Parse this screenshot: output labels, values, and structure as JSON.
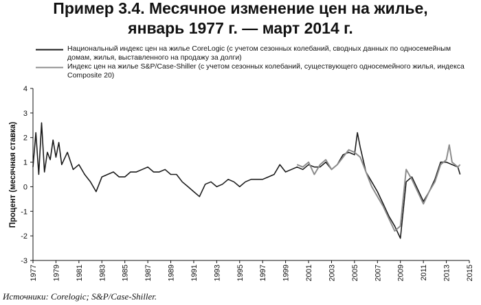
{
  "chart_data": {
    "type": "line",
    "title": [
      "Пример 3.4. Месячное изменение цен на жилье,",
      "январь 1977 г. — март 2014 г."
    ],
    "y_label": "Процент (месячная ставка)",
    "source": "Источники: Corelogic; S&P/Case-Shiller.",
    "xlim": [
      1977,
      2015
    ],
    "xticks": [
      1977,
      1979,
      1981,
      1983,
      1985,
      1987,
      1989,
      1991,
      1993,
      1995,
      1997,
      1999,
      2001,
      2003,
      2005,
      2007,
      2009,
      2011,
      2013,
      2015
    ],
    "ylim": [
      -3,
      4
    ],
    "yticks": [
      -3,
      -2,
      -1,
      0,
      1,
      2,
      3,
      4
    ],
    "series": [
      {
        "name": "Национальный индекс цен на жилье CoreLogic (с учетом сезонных колебаний, сводных данных по односемейным домам, жилья, выставленного на продажу за долги)",
        "color": "#1a1a1a",
        "x": [
          1977,
          1977.25,
          1977.5,
          1977.75,
          1978,
          1978.25,
          1978.5,
          1978.75,
          1979,
          1979.25,
          1979.5,
          1980,
          1980.5,
          1981,
          1981.5,
          1982,
          1982.5,
          1983,
          1983.5,
          1984,
          1984.5,
          1985,
          1985.5,
          1986,
          1986.5,
          1987,
          1987.5,
          1988,
          1988.5,
          1989,
          1989.5,
          1990,
          1990.5,
          1991,
          1991.5,
          1992,
          1992.5,
          1993,
          1993.5,
          1994,
          1994.5,
          1995,
          1995.5,
          1996,
          1996.5,
          1997,
          1997.5,
          1998,
          1998.5,
          1999,
          1999.5,
          2000,
          2000.5,
          2001,
          2001.5,
          2002,
          2002.5,
          2003,
          2003.5,
          2004,
          2004.5,
          2005,
          2005.25,
          2005.5,
          2006,
          2006.5,
          2007,
          2007.5,
          2008,
          2008.5,
          2009,
          2009.5,
          2010,
          2010.5,
          2011,
          2011.5,
          2012,
          2012.5,
          2013,
          2013.5,
          2014,
          2014.2
        ],
        "values": [
          0.8,
          2.2,
          0.5,
          2.6,
          0.6,
          1.4,
          1.1,
          1.9,
          1.2,
          1.8,
          0.9,
          1.4,
          0.7,
          0.9,
          0.5,
          0.2,
          -0.2,
          0.4,
          0.5,
          0.6,
          0.4,
          0.4,
          0.6,
          0.6,
          0.7,
          0.8,
          0.6,
          0.6,
          0.7,
          0.5,
          0.5,
          0.2,
          0.0,
          -0.2,
          -0.4,
          0.1,
          0.2,
          0.0,
          0.1,
          0.3,
          0.2,
          0.0,
          0.2,
          0.3,
          0.3,
          0.3,
          0.4,
          0.5,
          0.9,
          0.6,
          0.7,
          0.8,
          0.7,
          0.9,
          0.8,
          0.8,
          1.0,
          0.7,
          0.9,
          1.3,
          1.4,
          1.3,
          2.2,
          1.6,
          0.6,
          0.2,
          -0.2,
          -0.7,
          -1.2,
          -1.6,
          -2.1,
          0.2,
          0.4,
          -0.1,
          -0.6,
          -0.2,
          0.3,
          1.0,
          1.0,
          0.9,
          0.8,
          0.5
        ]
      },
      {
        "name": "Индекс цен на жилье S&P/Case-Shiller (с учетом сезонных колебаний, существующего односемейного жилья, индекса Composite 20)",
        "color": "#8c8c8c",
        "x": [
          2000,
          2000.5,
          2001,
          2001.5,
          2002,
          2002.5,
          2003,
          2003.5,
          2004,
          2004.5,
          2005,
          2005.5,
          2006,
          2006.5,
          2007,
          2007.5,
          2008,
          2008.5,
          2009,
          2009.5,
          2010,
          2010.5,
          2011,
          2011.5,
          2012,
          2012.5,
          2013,
          2013.25,
          2013.5,
          2014,
          2014.2
        ],
        "values": [
          0.9,
          0.8,
          1.0,
          0.5,
          0.9,
          1.1,
          0.7,
          0.9,
          1.2,
          1.5,
          1.4,
          1.2,
          0.6,
          0.0,
          -0.4,
          -0.8,
          -1.3,
          -1.8,
          -1.6,
          0.7,
          0.3,
          -0.2,
          -0.7,
          -0.2,
          0.2,
          0.9,
          1.1,
          1.7,
          1.0,
          0.8,
          0.9
        ]
      }
    ]
  }
}
